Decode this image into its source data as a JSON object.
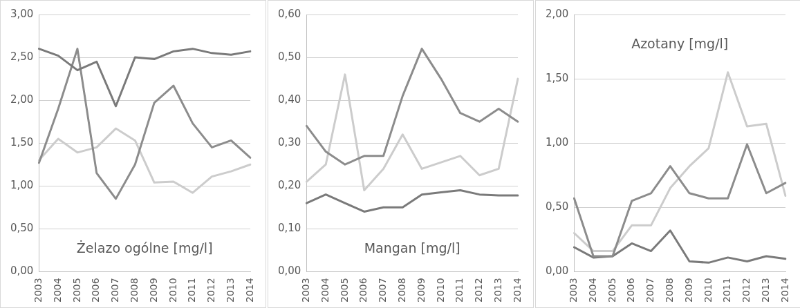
{
  "chart_data": [
    {
      "type": "line",
      "title": "Żelazo ogólne [mg/l]",
      "categories": [
        "2003",
        "2004",
        "2005",
        "2006",
        "2007",
        "2008",
        "2009",
        "2010",
        "2011",
        "2012",
        "2013",
        "2014"
      ],
      "series": [
        {
          "color": "#7a7a7a",
          "values": [
            2.6,
            2.52,
            2.35,
            2.45,
            1.93,
            2.5,
            2.48,
            2.57,
            2.6,
            2.55,
            2.53,
            2.57
          ]
        },
        {
          "color": "#8c8c8c",
          "values": [
            1.27,
            1.9,
            2.6,
            1.15,
            0.85,
            1.25,
            1.97,
            2.17,
            1.73,
            1.45,
            1.53,
            1.33
          ]
        },
        {
          "color": "#cccccc",
          "values": [
            1.3,
            1.55,
            1.39,
            1.45,
            1.67,
            1.53,
            1.04,
            1.05,
            0.92,
            1.11,
            1.17,
            1.25
          ]
        }
      ],
      "ylim": [
        0,
        3
      ],
      "yticks": [
        {
          "value": 0,
          "label": "0,00"
        },
        {
          "value": 0.5,
          "label": "0,50"
        },
        {
          "value": 1,
          "label": "1,00"
        },
        {
          "value": 1.5,
          "label": "1,50"
        },
        {
          "value": 2,
          "label": "2,00"
        },
        {
          "value": 2.5,
          "label": "2,50"
        },
        {
          "value": 3,
          "label": "3,00"
        }
      ],
      "grid": "y",
      "legend": false,
      "marker": "none",
      "line_style": "solid"
    },
    {
      "type": "line",
      "title": "Mangan [mg/l]",
      "categories": [
        "2003",
        "2004",
        "2005",
        "2006",
        "2007",
        "2008",
        "2009",
        "2010",
        "2011",
        "2012",
        "2013",
        "2014"
      ],
      "series": [
        {
          "color": "#8c8c8c",
          "values": [
            0.34,
            0.28,
            0.25,
            0.27,
            0.27,
            0.41,
            0.52,
            0.45,
            0.37,
            0.35,
            0.38,
            0.35
          ]
        },
        {
          "color": "#7a7a7a",
          "values": [
            0.16,
            0.18,
            0.16,
            0.14,
            0.15,
            0.15,
            0.18,
            0.185,
            0.19,
            0.18,
            0.178,
            0.178
          ]
        },
        {
          "color": "#cccccc",
          "values": [
            0.21,
            0.25,
            0.46,
            0.19,
            0.24,
            0.32,
            0.24,
            0.255,
            0.27,
            0.225,
            0.24,
            0.45
          ]
        }
      ],
      "ylim": [
        0,
        0.6
      ],
      "yticks": [
        {
          "value": 0,
          "label": "0,00"
        },
        {
          "value": 0.1,
          "label": "0,10"
        },
        {
          "value": 0.2,
          "label": "0,20"
        },
        {
          "value": 0.3,
          "label": "0,30"
        },
        {
          "value": 0.4,
          "label": "0,40"
        },
        {
          "value": 0.5,
          "label": "0,50"
        },
        {
          "value": 0.6,
          "label": "0,60"
        }
      ],
      "grid": "y",
      "legend": false,
      "marker": "none",
      "line_style": "solid"
    },
    {
      "type": "line",
      "title": "Azotany [mg/l]",
      "categories": [
        "2003",
        "2004",
        "2005",
        "2006",
        "2007",
        "2008",
        "2009",
        "2010",
        "2011",
        "2012",
        "2013",
        "2014"
      ],
      "series": [
        {
          "color": "#8c8c8c",
          "values": [
            0.57,
            0.12,
            0.12,
            0.55,
            0.61,
            0.82,
            0.61,
            0.57,
            0.57,
            0.99,
            0.61,
            0.69
          ]
        },
        {
          "color": "#7a7a7a",
          "values": [
            0.19,
            0.11,
            0.12,
            0.22,
            0.16,
            0.32,
            0.08,
            0.07,
            0.11,
            0.08,
            0.12,
            0.1
          ]
        },
        {
          "color": "#cccccc",
          "values": [
            0.3,
            0.16,
            0.16,
            0.36,
            0.36,
            0.65,
            0.82,
            0.96,
            1.55,
            1.13,
            1.15,
            0.59
          ]
        }
      ],
      "ylim": [
        0,
        2
      ],
      "yticks": [
        {
          "value": 0,
          "label": "0,00"
        },
        {
          "value": 0.5,
          "label": "0,50"
        },
        {
          "value": 1,
          "label": "1,00"
        },
        {
          "value": 1.5,
          "label": "1,50"
        },
        {
          "value": 2,
          "label": "2,00"
        }
      ],
      "grid": "y",
      "legend": false,
      "marker": "none",
      "line_style": "solid"
    }
  ]
}
